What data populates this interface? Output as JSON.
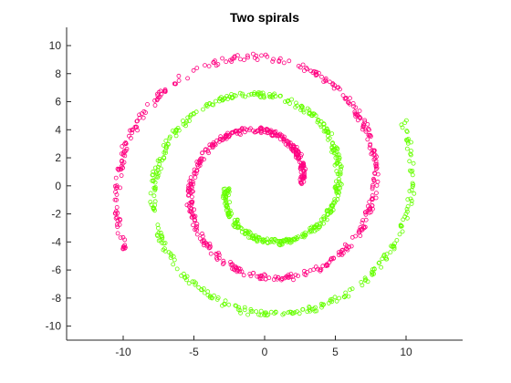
{
  "chart_data": {
    "type": "scatter",
    "title": "Two spirals",
    "xlabel": "",
    "ylabel": "",
    "xlim": [
      -14,
      14
    ],
    "ylim": [
      -11,
      11.3
    ],
    "xticks": [
      -10,
      -5,
      0,
      5,
      10
    ],
    "yticks": [
      -10,
      -8,
      -6,
      -4,
      -2,
      0,
      2,
      4,
      6,
      8,
      10
    ],
    "grid": false,
    "legend": "none",
    "series": [
      {
        "color": "#66ff00",
        "marker": "open-circle",
        "spiral": {
          "phase": 0,
          "theta_start": 3.2,
          "theta_end": 13.0,
          "radius_per_radian": 0.83
        },
        "approx_points": [
          [
            -1.5,
            -1.3
          ],
          [
            -2.0,
            -1.5
          ],
          [
            -2.9,
            -0.1
          ],
          [
            -2.6,
            2.6
          ],
          [
            0,
            4.0
          ],
          [
            2.7,
            4.6
          ],
          [
            5.2,
            3.0
          ],
          [
            6.5,
            0
          ],
          [
            5.6,
            -4.0
          ],
          [
            3.0,
            -6.8
          ],
          [
            0,
            -7.9
          ],
          [
            -3.4,
            -7.2
          ],
          [
            -6.8,
            -5.4
          ],
          [
            -9.0,
            -1.5
          ],
          [
            -9.2,
            2.2
          ],
          [
            -7.0,
            7.2
          ],
          [
            -3.6,
            10.0
          ],
          [
            0,
            11.0
          ],
          [
            3.2,
            10.7
          ],
          [
            6.0,
            10.2
          ]
        ]
      },
      {
        "color": "#ff0080",
        "marker": "open-circle",
        "spiral": {
          "phase": 3.14159,
          "theta_start": 3.2,
          "theta_end": 13.0,
          "radius_per_radian": 0.83
        },
        "approx_points": [
          [
            1.5,
            1.8
          ],
          [
            2.6,
            1.6
          ],
          [
            2.8,
            0
          ],
          [
            3.0,
            -2.7
          ],
          [
            1.8,
            -4.3
          ],
          [
            -1.5,
            -4.8
          ],
          [
            -3.6,
            -4.3
          ],
          [
            -5.2,
            -2.7
          ],
          [
            -6.0,
            0
          ],
          [
            -6.0,
            3.0
          ],
          [
            -5.4,
            5.0
          ],
          [
            -2.5,
            7.6
          ],
          [
            0,
            8.0
          ],
          [
            3.8,
            7.6
          ],
          [
            6.3,
            6.3
          ],
          [
            8.7,
            3.2
          ],
          [
            9.5,
            -1.0
          ],
          [
            9.0,
            -3.6
          ],
          [
            6.6,
            -7.0
          ],
          [
            0,
            -10.8
          ],
          [
            -5.5,
            -10.1
          ]
        ]
      }
    ]
  }
}
